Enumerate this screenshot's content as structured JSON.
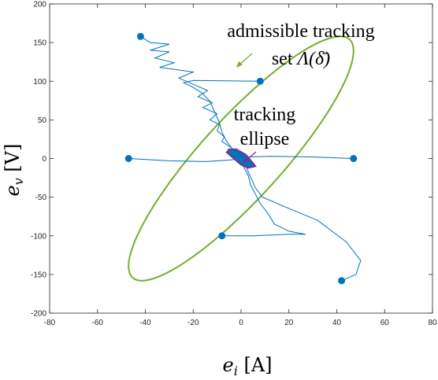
{
  "chart_data": {
    "type": "scatter",
    "xlabel_var": "e",
    "xlabel_sub": "i",
    "xlabel_unit": "[A]",
    "ylabel_var": "e",
    "ylabel_sub": "v",
    "ylabel_unit": "[V]",
    "xlim": [
      -80,
      80
    ],
    "ylim": [
      -200,
      200
    ],
    "xticks": [
      "-80",
      "-60",
      "-40",
      "-20",
      "0",
      "20",
      "40",
      "60",
      "80"
    ],
    "yticks": [
      "-200",
      "-150",
      "-100",
      "-50",
      "0",
      "50",
      "100",
      "150",
      "200"
    ],
    "box": true,
    "grid": false,
    "colors": {
      "admissible_set": "#77ac30",
      "tracking_ellipse": "#7e2f8e",
      "trajectory": "#0072bd",
      "markers": "#0072bd"
    },
    "admissible_set": {
      "center": [
        0,
        0
      ],
      "boundary_points": [
        [
          -42,
          158
        ],
        [
          42,
          -158
        ],
        [
          -47,
          0
        ],
        [
          47,
          0
        ],
        [
          8,
          100
        ],
        [
          -8,
          -100
        ]
      ]
    },
    "tracking_ellipse_points": [
      [
        -6,
        8
      ],
      [
        -5,
        12
      ],
      [
        -2,
        12
      ],
      [
        2,
        5
      ],
      [
        5,
        -6
      ],
      [
        6,
        -10
      ],
      [
        3,
        -12
      ],
      [
        0,
        -8
      ],
      [
        -3,
        0
      ]
    ],
    "start_points": [
      {
        "x": -42,
        "y": 158
      },
      {
        "x": 8,
        "y": 100
      },
      {
        "x": -47,
        "y": 0
      },
      {
        "x": 47,
        "y": 0
      },
      {
        "x": -8,
        "y": -100
      },
      {
        "x": 42,
        "y": -158
      }
    ],
    "trajectories": [
      [
        [
          -42,
          158
        ],
        [
          -38,
          150
        ],
        [
          -30,
          148
        ],
        [
          -38,
          140
        ],
        [
          -30,
          138
        ],
        [
          -36,
          130
        ],
        [
          -28,
          124
        ],
        [
          -34,
          118
        ],
        [
          -20,
          112
        ],
        [
          -26,
          104
        ],
        [
          -20,
          96
        ],
        [
          -14,
          88
        ],
        [
          -18,
          80
        ],
        [
          -12,
          72
        ],
        [
          -16,
          66
        ],
        [
          -10,
          58
        ],
        [
          -13,
          50
        ],
        [
          -9,
          44
        ],
        [
          -10,
          36
        ],
        [
          -7,
          28
        ],
        [
          -8,
          22
        ],
        [
          -4,
          14
        ],
        [
          -2,
          6
        ],
        [
          0,
          0
        ]
      ],
      [
        [
          8,
          100
        ],
        [
          -20,
          101
        ],
        [
          -24,
          98
        ],
        [
          -20,
          92
        ],
        [
          -16,
          84
        ],
        [
          -13,
          74
        ],
        [
          -11,
          60
        ],
        [
          -9,
          46
        ],
        [
          -8,
          34
        ],
        [
          -6,
          22
        ],
        [
          -3,
          10
        ],
        [
          0,
          0
        ]
      ],
      [
        [
          -47,
          0
        ],
        [
          -30,
          -3
        ],
        [
          -15,
          -4
        ],
        [
          -5,
          -2
        ],
        [
          0,
          0
        ]
      ],
      [
        [
          47,
          0
        ],
        [
          30,
          2
        ],
        [
          12,
          3
        ],
        [
          3,
          2
        ],
        [
          0,
          0
        ]
      ],
      [
        [
          -8,
          -100
        ],
        [
          5,
          -100
        ],
        [
          20,
          -98
        ],
        [
          27,
          -98
        ],
        [
          20,
          -94
        ],
        [
          14,
          -85
        ],
        [
          11,
          -70
        ],
        [
          8,
          -58
        ],
        [
          6,
          -46
        ],
        [
          4,
          -34
        ],
        [
          3,
          -22
        ],
        [
          1,
          -10
        ],
        [
          0,
          0
        ]
      ],
      [
        [
          42,
          -158
        ],
        [
          48,
          -150
        ],
        [
          50,
          -132
        ],
        [
          44,
          -108
        ],
        [
          32,
          -80
        ],
        [
          18,
          -62
        ],
        [
          9,
          -50
        ],
        [
          6,
          -38
        ],
        [
          4,
          -24
        ],
        [
          2,
          -10
        ],
        [
          0,
          0
        ]
      ]
    ],
    "annotations": {
      "admissible_line1": "admissible tracking",
      "admissible_line2_prefix": "set",
      "admissible_line2_math": "Λ(δ̄)",
      "tracking_line1": "tracking",
      "tracking_line2": "ellipse"
    }
  }
}
